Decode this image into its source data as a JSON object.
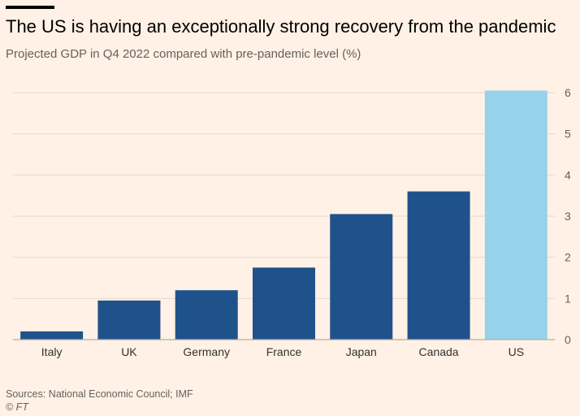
{
  "header": {
    "title": "The US is having an exceptionally strong recovery from the pandemic",
    "subtitle": "Projected GDP in Q4 2022 compared with pre-pandemic level (%)"
  },
  "footer": {
    "source": "Sources: National Economic Council; IMF",
    "copyright": "© FT"
  },
  "chart_data": {
    "type": "bar",
    "title": "The US is having an exceptionally strong recovery from the pandemic",
    "subtitle": "Projected GDP in Q4 2022 compared with pre-pandemic level (%)",
    "categories": [
      "Italy",
      "UK",
      "Germany",
      "France",
      "Japan",
      "Canada",
      "US"
    ],
    "values": [
      0.2,
      0.95,
      1.2,
      1.75,
      3.05,
      3.6,
      6.05
    ],
    "ylim": [
      0,
      6
    ],
    "yticks": [
      0,
      1,
      2,
      3,
      4,
      5,
      6
    ],
    "y_axis_side": "right",
    "grid": true,
    "colors": {
      "default_bar": "#1f528a",
      "highlight_bar": "#96d3ea",
      "grid": "#e3d8cf",
      "axis": "#b5aca4"
    },
    "highlight": "US"
  }
}
